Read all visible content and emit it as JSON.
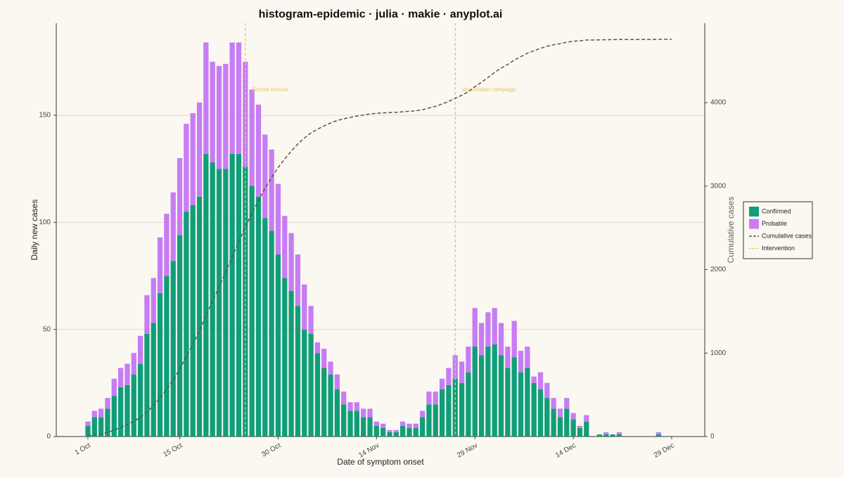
{
  "chart_data": {
    "type": "bar",
    "title": "histogram-epidemic · julia · makie · anyplot.ai",
    "x_label": "Date of symptom onset",
    "y_label": "Daily new cases",
    "y2_label": "Cumulative cases",
    "stacked": true,
    "grid": true,
    "legend": "right",
    "categories": [
      "1 Oct",
      null,
      null,
      null,
      null,
      null,
      null,
      null,
      null,
      null,
      null,
      null,
      null,
      null,
      "15 Oct",
      null,
      null,
      null,
      null,
      null,
      null,
      null,
      null,
      null,
      null,
      null,
      null,
      null,
      null,
      "30 Oct",
      null,
      null,
      null,
      null,
      null,
      null,
      null,
      null,
      null,
      null,
      null,
      null,
      null,
      null,
      "14 Nov",
      null,
      null,
      null,
      null,
      null,
      null,
      null,
      null,
      null,
      null,
      null,
      null,
      null,
      null,
      "29 Nov",
      null,
      null,
      null,
      null,
      null,
      null,
      null,
      null,
      null,
      null,
      null,
      null,
      null,
      null,
      "14 Dec",
      null,
      null,
      null,
      null,
      null,
      null,
      null,
      null,
      null,
      null,
      null,
      null,
      null,
      null,
      "29 Dec"
    ],
    "series": [
      {
        "name": "Confirmed",
        "color": "#109e78",
        "values": [
          5,
          9,
          9,
          13,
          19,
          23,
          24,
          29,
          34,
          48,
          53,
          67,
          75,
          82,
          94,
          105,
          108,
          112,
          132,
          128,
          125,
          125,
          132,
          132,
          126,
          117,
          112,
          102,
          96,
          85,
          74,
          68,
          61,
          50,
          48,
          39,
          32,
          29,
          22,
          15,
          12,
          12,
          9,
          9,
          5,
          4,
          2,
          2,
          5,
          4,
          4,
          9,
          15,
          15,
          22,
          24,
          27,
          25,
          30,
          42,
          38,
          42,
          43,
          38,
          32,
          37,
          30,
          32,
          25,
          22,
          18,
          13,
          9,
          13,
          8,
          4,
          7,
          0,
          1,
          1,
          1,
          1,
          0,
          0,
          0,
          0,
          0,
          1,
          0,
          0
        ]
      },
      {
        "name": "Probable",
        "color": "#c77cf4",
        "values": [
          2,
          3,
          4,
          5,
          8,
          9,
          10,
          10,
          13,
          18,
          21,
          26,
          29,
          32,
          36,
          41,
          43,
          44,
          52,
          47,
          48,
          49,
          52,
          52,
          49,
          45,
          43,
          39,
          38,
          33,
          29,
          27,
          24,
          21,
          13,
          5,
          9,
          6,
          7,
          6,
          4,
          4,
          4,
          4,
          2,
          2,
          1,
          1,
          2,
          2,
          2,
          3,
          6,
          6,
          5,
          8,
          11,
          10,
          12,
          18,
          15,
          16,
          17,
          15,
          10,
          17,
          10,
          10,
          3,
          8,
          7,
          5,
          4,
          5,
          3,
          1,
          3,
          0,
          0,
          1,
          0,
          1,
          0,
          0,
          0,
          0,
          0,
          1,
          0,
          0
        ]
      },
      {
        "name": "Cumulative cases",
        "color": "#555555",
        "type": "line",
        "dashed": true,
        "axis": "y2",
        "values": [
          7,
          19,
          32,
          50,
          77,
          109,
          143,
          182,
          229,
          295,
          369,
          462,
          566,
          680,
          810,
          956,
          1107,
          1263,
          1447,
          1622,
          1795,
          1969,
          2153,
          2337,
          2512,
          2674,
          2829,
          2970,
          3104,
          3222,
          3325,
          3420,
          3505,
          3576,
          3637,
          3681,
          3722,
          3757,
          3786,
          3807,
          3823,
          3839,
          3852,
          3865,
          3872,
          3878,
          3881,
          3884,
          3891,
          3897,
          3903,
          3915,
          3936,
          3957,
          3984,
          4016,
          4054,
          4089,
          4131,
          4191,
          4244,
          4302,
          4362,
          4415,
          4457,
          4511,
          4551,
          4593,
          4621,
          4651,
          4676,
          4694,
          4707,
          4725,
          4736,
          4741,
          4751,
          4751,
          4752,
          4754,
          4755,
          4757,
          4757,
          4757,
          4757,
          4757,
          4757,
          4759,
          4759,
          4759
        ]
      }
    ],
    "intervention_name": "Intervention",
    "intervention_color": "#e6c65a",
    "interventions": [
      {
        "label": "School closure",
        "x": 24
      },
      {
        "label": "Vaccination campaign",
        "x": 56
      }
    ],
    "ylim": [
      0,
      193
    ],
    "yticks": [
      0,
      50,
      100,
      150
    ],
    "y2lim": [
      0,
      4952
    ],
    "y2ticks": [
      0,
      1000,
      2000,
      3000,
      4000
    ]
  }
}
